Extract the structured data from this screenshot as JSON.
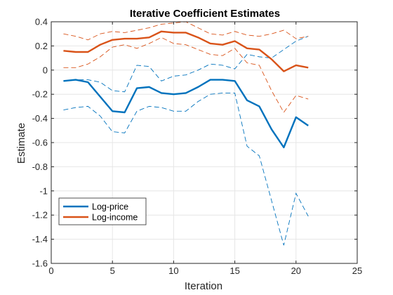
{
  "chart_data": {
    "type": "line",
    "title": "Iterative Coefficient Estimates",
    "xlabel": "Iteration",
    "ylabel": "Estimate",
    "xlim": [
      0,
      25
    ],
    "ylim": [
      -1.6,
      0.4
    ],
    "xticks": [
      0,
      5,
      10,
      15,
      20,
      25
    ],
    "xtick_labels": [
      "0",
      "5",
      "10",
      "15",
      "20",
      "25"
    ],
    "yticks": [
      -1.6,
      -1.4,
      -1.2,
      -1,
      -0.8,
      -0.6,
      -0.4,
      -0.2,
      0,
      0.2,
      0.4
    ],
    "ytick_labels": [
      "-1.6",
      "-1.4",
      "-1.2",
      "-1",
      "-0.8",
      "-0.6",
      "-0.4",
      "-0.2",
      "0",
      "0.2",
      "0.4"
    ],
    "grid": true,
    "legend_location": "bottom-left",
    "x": [
      1,
      2,
      3,
      4,
      5,
      6,
      7,
      8,
      9,
      10,
      11,
      12,
      13,
      14,
      15,
      16,
      17,
      18,
      19,
      20,
      21
    ],
    "series": [
      {
        "name": "Log-price",
        "color": "#0072BD",
        "values": [
          -0.09,
          -0.08,
          -0.1,
          -0.22,
          -0.34,
          -0.35,
          -0.15,
          -0.14,
          -0.19,
          -0.2,
          -0.19,
          -0.14,
          -0.08,
          -0.08,
          -0.09,
          -0.25,
          -0.3,
          -0.49,
          -0.64,
          -0.39,
          -0.46
        ],
        "lower": [
          -0.33,
          -0.31,
          -0.3,
          -0.38,
          -0.51,
          -0.52,
          -0.34,
          -0.3,
          -0.31,
          -0.34,
          -0.34,
          -0.26,
          -0.2,
          -0.19,
          -0.19,
          -0.63,
          -0.71,
          -1.08,
          -1.45,
          -1.02,
          -1.21
        ],
        "upper": [
          -0.09,
          -0.08,
          -0.08,
          -0.1,
          -0.17,
          -0.18,
          0.04,
          0.03,
          -0.09,
          -0.05,
          -0.04,
          0.0,
          0.05,
          0.04,
          0.01,
          0.13,
          0.11,
          0.1,
          0.17,
          0.24,
          0.28
        ]
      },
      {
        "name": "Log-income",
        "color": "#D95319",
        "values": [
          0.16,
          0.15,
          0.15,
          0.21,
          0.25,
          0.26,
          0.26,
          0.27,
          0.32,
          0.31,
          0.31,
          0.27,
          0.22,
          0.21,
          0.24,
          0.18,
          0.17,
          0.09,
          -0.01,
          0.04,
          0.02
        ],
        "lower": [
          0.02,
          0.02,
          0.05,
          0.11,
          0.19,
          0.21,
          0.18,
          0.22,
          0.27,
          0.22,
          0.21,
          0.17,
          0.13,
          0.12,
          0.18,
          0.06,
          0.04,
          -0.17,
          -0.35,
          -0.21,
          -0.24
        ],
        "upper": [
          0.3,
          0.28,
          0.25,
          0.3,
          0.32,
          0.31,
          0.33,
          0.35,
          0.38,
          0.39,
          0.4,
          0.35,
          0.3,
          0.29,
          0.32,
          0.29,
          0.28,
          0.3,
          0.33,
          0.26,
          0.28
        ]
      }
    ]
  }
}
